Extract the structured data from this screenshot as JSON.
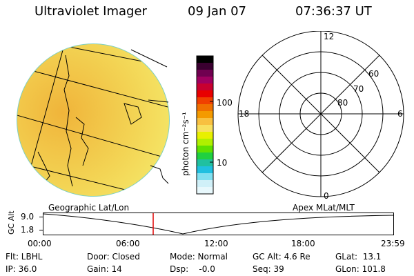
{
  "header": {
    "instrument": "Ultraviolet Imager",
    "date": "09 Jan 07",
    "time": "07:36:37 UT"
  },
  "globe": {
    "label": "Geographic Lat/Lon",
    "fill_color": "#f3e25a",
    "shade_color": "#f0b43a"
  },
  "colorbar": {
    "unit_label": "photon cm⁻²s⁻¹",
    "ticks": [
      "100",
      "10"
    ],
    "colors": [
      "#000000",
      "#3a0030",
      "#700050",
      "#a00060",
      "#c80030",
      "#e80000",
      "#f04000",
      "#f07000",
      "#f49a00",
      "#f8c040",
      "#f8e060",
      "#e8f000",
      "#b0f000",
      "#60e000",
      "#20d040",
      "#20c0a0",
      "#20c0e0",
      "#80e0f0",
      "#d0f0f8",
      "#e8f8fc"
    ]
  },
  "polar": {
    "label": "Apex  MLat/MLT",
    "mlt_labels": {
      "top": "12",
      "left": "18",
      "right": "6",
      "bottom": "0"
    },
    "lat_labels": [
      "60",
      "70",
      "80"
    ]
  },
  "timeline": {
    "axis_label": "GC Alt",
    "y_ticks": [
      "9.0",
      "1.8"
    ],
    "x_ticks": [
      "00:00",
      "06:00",
      "12:00",
      "18:00",
      "23:59"
    ],
    "cursor_color": "#e00000"
  },
  "status": {
    "flt": "Flt: LBHL",
    "ip": "IP: 36.0",
    "door": "Door: Closed",
    "gain": "Gain: 14",
    "mode": "Mode: Normal",
    "dsp": "Dsp:    -0.0",
    "gc_alt": "GC Alt: 4.6 Re",
    "seq": "Seq: 39",
    "glat": "GLat:  13.1",
    "glon": "GLon: 101.8"
  }
}
